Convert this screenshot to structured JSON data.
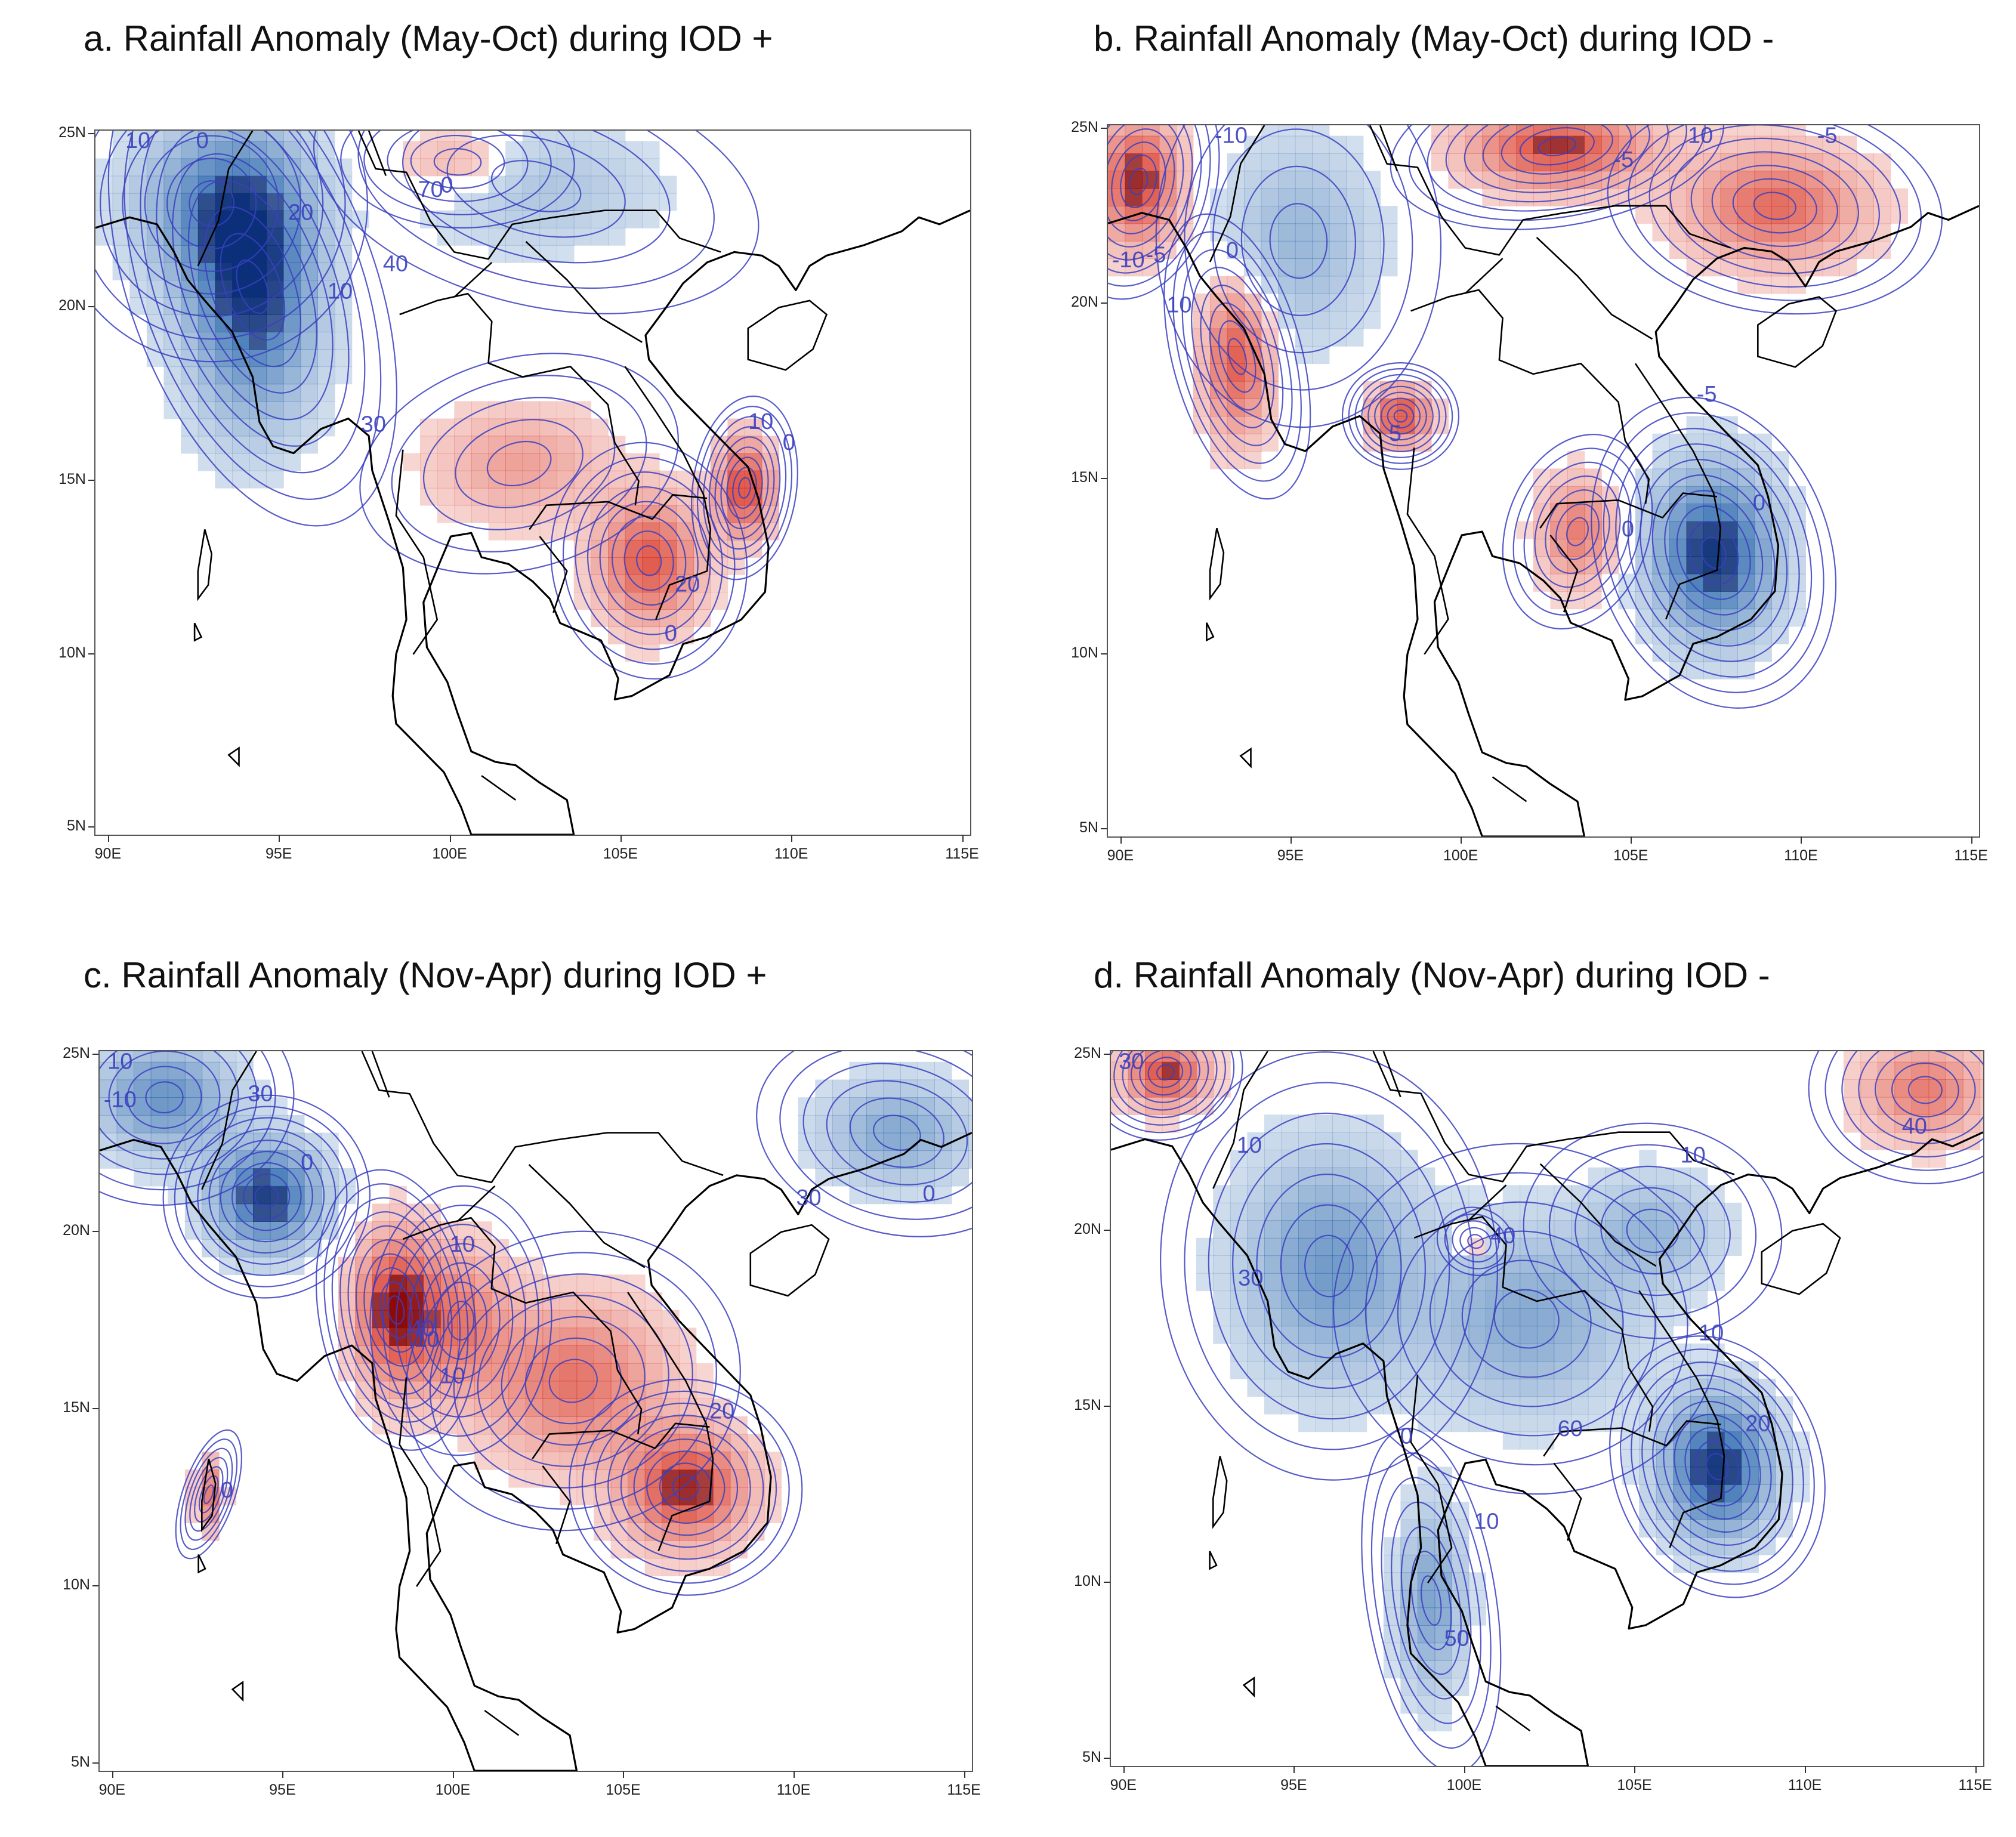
{
  "figure": {
    "panels": [
      {
        "id": "a",
        "title": "a. Rainfall Anomaly (May-Oct) during IOD +",
        "lat_labels": [
          "25N",
          "20N",
          "15N",
          "10N",
          "5N"
        ],
        "lon_labels": [
          "90E",
          "95E",
          "100E",
          "105E",
          "110E",
          "115E"
        ],
        "contour_labels": [
          "20",
          "10",
          "40",
          "20",
          "10",
          "30",
          "0",
          "10",
          "0",
          "70",
          "0",
          "0"
        ],
        "anomaly_regions": [
          {
            "sign": "wet",
            "strength": 0.9,
            "lon": 94.2,
            "lat": 20.6,
            "rlon": 1.9,
            "rlat": 3.8
          },
          {
            "sign": "wet",
            "strength": 0.5,
            "lon": 93.0,
            "lat": 23.0,
            "rlon": 2.4,
            "rlat": 2.4
          },
          {
            "sign": "wet",
            "strength": 0.25,
            "lon": 102.5,
            "lat": 23.5,
            "rlon": 3.5,
            "rlat": 1.8
          },
          {
            "sign": "dry",
            "strength": 0.75,
            "lon": 105.8,
            "lat": 12.7,
            "rlon": 1.5,
            "rlat": 1.8
          },
          {
            "sign": "dry",
            "strength": 0.85,
            "lon": 108.6,
            "lat": 14.8,
            "rlon": 0.8,
            "rlat": 1.4
          },
          {
            "sign": "dry",
            "strength": 0.35,
            "lon": 102.0,
            "lat": 15.5,
            "rlon": 2.5,
            "rlat": 1.6
          },
          {
            "sign": "dry",
            "strength": 0.3,
            "lon": 100.2,
            "lat": 24.2,
            "rlon": 1.8,
            "rlat": 1.0
          }
        ]
      },
      {
        "id": "b",
        "title": "b. Rainfall Anomaly (May-Oct) during IOD -",
        "lat_labels": [
          "25N",
          "20N",
          "15N",
          "10N",
          "5N"
        ],
        "lon_labels": [
          "90E",
          "95E",
          "100E",
          "105E",
          "110E",
          "115E"
        ],
        "contour_labels": [
          "0",
          "-10",
          "-10",
          "-5",
          "-5",
          "10",
          "5",
          "0",
          "-5",
          "0",
          "-5",
          "10"
        ],
        "anomaly_regions": [
          {
            "sign": "wet",
            "strength": 0.95,
            "lon": 107.4,
            "lat": 12.9,
            "rlon": 1.8,
            "rlat": 2.4
          },
          {
            "sign": "wet",
            "strength": 0.35,
            "lon": 95.2,
            "lat": 21.8,
            "rlon": 2.2,
            "rlat": 2.8
          },
          {
            "sign": "dry",
            "strength": 0.85,
            "lon": 90.5,
            "lat": 23.5,
            "rlon": 1.2,
            "rlat": 1.8
          },
          {
            "sign": "dry",
            "strength": 0.8,
            "lon": 102.8,
            "lat": 24.5,
            "rlon": 2.6,
            "rlat": 1.2
          },
          {
            "sign": "dry",
            "strength": 0.65,
            "lon": 109.2,
            "lat": 22.8,
            "rlon": 2.6,
            "rlat": 1.6
          },
          {
            "sign": "dry",
            "strength": 0.75,
            "lon": 93.4,
            "lat": 18.5,
            "rlon": 1.0,
            "rlat": 2.2
          },
          {
            "sign": "dry",
            "strength": 0.8,
            "lon": 98.2,
            "lat": 16.8,
            "rlon": 0.9,
            "rlat": 0.8
          },
          {
            "sign": "dry",
            "strength": 0.55,
            "lon": 103.4,
            "lat": 13.5,
            "rlon": 1.1,
            "rlat": 1.5
          }
        ]
      },
      {
        "id": "c",
        "title": "c. Rainfall Anomaly (Nov-Apr) during IOD +",
        "lat_labels": [
          "25N",
          "20N",
          "15N",
          "10N",
          "5N"
        ],
        "lon_labels": [
          "90E",
          "95E",
          "100E",
          "105E",
          "110E",
          "115E"
        ],
        "contour_labels": [
          "0",
          "10",
          "30",
          "10",
          "20",
          "40",
          "10",
          "0",
          "30",
          "-10",
          "0",
          "10"
        ],
        "anomaly_regions": [
          {
            "sign": "wet",
            "strength": 0.9,
            "lon": 94.5,
            "lat": 21.0,
            "rlon": 1.6,
            "rlat": 1.5
          },
          {
            "sign": "wet",
            "strength": 0.6,
            "lon": 91.5,
            "lat": 23.8,
            "rlon": 2.0,
            "rlat": 1.6
          },
          {
            "sign": "wet",
            "strength": 0.45,
            "lon": 113.0,
            "lat": 22.8,
            "rlon": 2.2,
            "rlat": 1.5
          },
          {
            "sign": "dry",
            "strength": 0.95,
            "lon": 98.3,
            "lat": 17.8,
            "rlon": 1.2,
            "rlat": 2.1
          },
          {
            "sign": "dry",
            "strength": 0.85,
            "lon": 106.8,
            "lat": 12.8,
            "rlon": 1.8,
            "rlat": 1.6
          },
          {
            "sign": "dry",
            "strength": 0.6,
            "lon": 103.5,
            "lat": 15.8,
            "rlon": 2.6,
            "rlat": 2.2
          },
          {
            "sign": "dry",
            "strength": 0.5,
            "lon": 100.2,
            "lat": 17.5,
            "rlon": 1.4,
            "rlat": 2.0
          },
          {
            "sign": "dry",
            "strength": 0.55,
            "lon": 92.8,
            "lat": 12.6,
            "rlon": 0.4,
            "rlat": 1.0
          }
        ]
      },
      {
        "id": "d",
        "title": "d. Rainfall Anomaly (Nov-Apr) during IOD -",
        "lat_labels": [
          "25N",
          "20N",
          "15N",
          "10N",
          "5N"
        ],
        "lon_labels": [
          "90E",
          "95E",
          "100E",
          "105E",
          "110E",
          "115E"
        ],
        "contour_labels": [
          "20",
          "10",
          "0",
          "50",
          "10",
          "30",
          "40",
          "40",
          "10",
          "30",
          "60",
          "10"
        ],
        "anomaly_regions": [
          {
            "sign": "wet",
            "strength": 0.95,
            "lon": 107.4,
            "lat": 13.3,
            "rlon": 1.6,
            "rlat": 2.0
          },
          {
            "sign": "wet",
            "strength": 0.55,
            "lon": 96.0,
            "lat": 19.0,
            "rlon": 2.6,
            "rlat": 3.2
          },
          {
            "sign": "wet",
            "strength": 0.45,
            "lon": 101.8,
            "lat": 17.5,
            "rlon": 3.0,
            "rlat": 2.6
          },
          {
            "sign": "wet",
            "strength": 0.5,
            "lon": 99.0,
            "lat": 9.5,
            "rlon": 1.0,
            "rlat": 2.6
          },
          {
            "sign": "wet",
            "strength": 0.35,
            "lon": 105.5,
            "lat": 20.0,
            "rlon": 2.0,
            "rlat": 1.6
          },
          {
            "sign": "dry",
            "strength": 0.8,
            "lon": 91.2,
            "lat": 24.5,
            "rlon": 1.2,
            "rlat": 1.0
          },
          {
            "sign": "dry",
            "strength": 0.55,
            "lon": 113.5,
            "lat": 24.0,
            "rlon": 1.8,
            "rlat": 1.4
          },
          {
            "sign": "dry",
            "strength": 0.3,
            "lon": 100.3,
            "lat": 19.7,
            "rlon": 0.6,
            "rlat": 0.5
          }
        ]
      }
    ],
    "colors": {
      "wet": "#1f5fa8",
      "wet_dark": "#0b2f78",
      "dry": "#d7301f",
      "dry_dark": "#8b0a0a",
      "contour": "#3a3fbf",
      "coast": "#000000"
    }
  }
}
